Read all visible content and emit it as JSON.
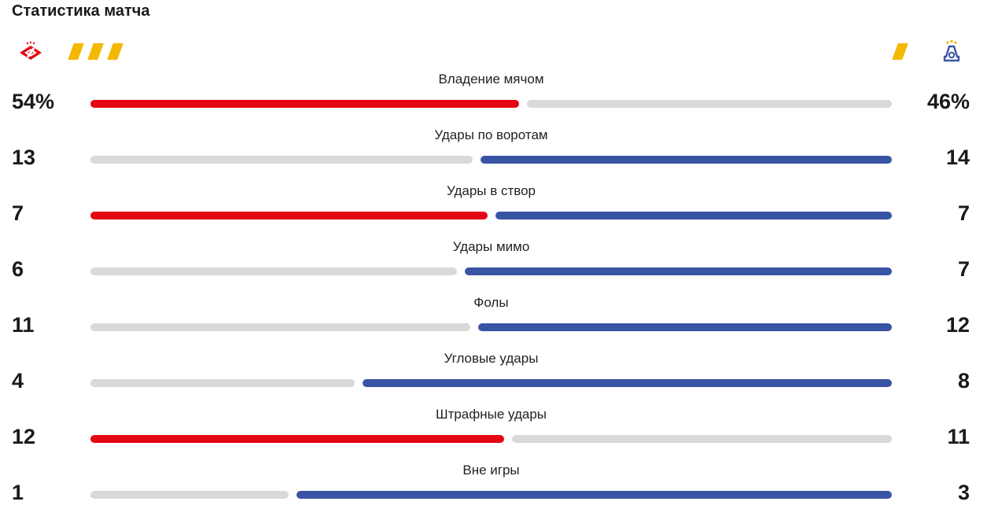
{
  "header": {
    "title": "Статистика матча"
  },
  "teams": {
    "home": {
      "logo": "spartak-logo-icon",
      "yellow_cards": 3,
      "color": "#e30613"
    },
    "away": {
      "logo": "dynamo-logo-icon",
      "yellow_cards": 1,
      "color": "#3a54a4"
    }
  },
  "colors": {
    "inactive_bar": "#d9d9d9",
    "card": "#f5b800"
  },
  "stats": [
    {
      "label": "Владение мячом",
      "home": "54%",
      "away": "46%",
      "home_share": 0.54,
      "leader": "home"
    },
    {
      "label": "Удары по воротам",
      "home": "13",
      "away": "14",
      "home_share": 0.4815,
      "leader": "away"
    },
    {
      "label": "Удары в створ",
      "home": "7",
      "away": "7",
      "home_share": 0.5,
      "leader": "both"
    },
    {
      "label": "Удары мимо",
      "home": "6",
      "away": "7",
      "home_share": 0.4615,
      "leader": "away"
    },
    {
      "label": "Фолы",
      "home": "11",
      "away": "12",
      "home_share": 0.4783,
      "leader": "away"
    },
    {
      "label": "Угловые удары",
      "home": "4",
      "away": "8",
      "home_share": 0.3333,
      "leader": "away"
    },
    {
      "label": "Штрафные удары",
      "home": "12",
      "away": "11",
      "home_share": 0.5217,
      "leader": "home"
    },
    {
      "label": "Вне игры",
      "home": "1",
      "away": "3",
      "home_share": 0.25,
      "leader": "away"
    }
  ]
}
